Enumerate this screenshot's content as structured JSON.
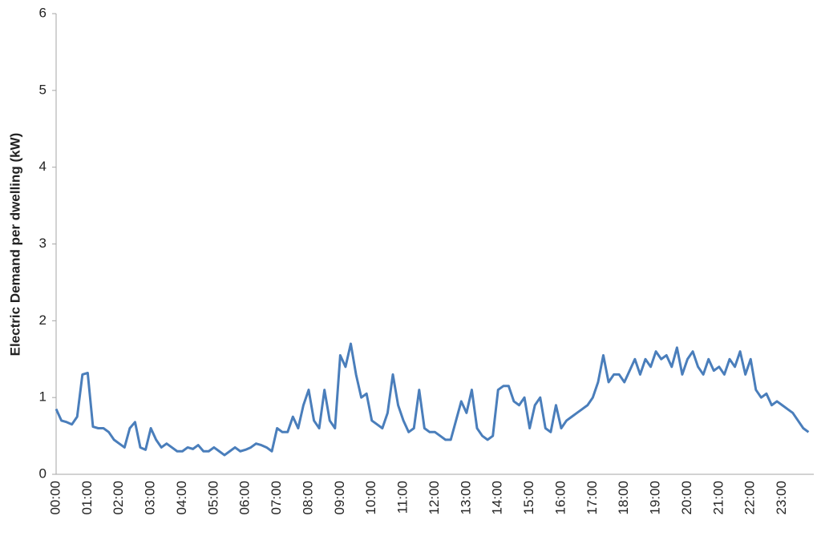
{
  "chart_data": {
    "type": "line",
    "y_label": "Electric Demand per dwelling (kW)",
    "categories": [
      "00:00",
      null,
      null,
      null,
      null,
      null,
      "01:00",
      null,
      null,
      null,
      null,
      null,
      "02:00",
      null,
      null,
      null,
      null,
      null,
      "03:00",
      null,
      null,
      null,
      null,
      null,
      "04:00",
      null,
      null,
      null,
      null,
      null,
      "05:00",
      null,
      null,
      null,
      null,
      null,
      "06:00",
      null,
      null,
      null,
      null,
      null,
      "07:00",
      null,
      null,
      null,
      null,
      null,
      "08:00",
      null,
      null,
      null,
      null,
      null,
      "09:00",
      null,
      null,
      null,
      null,
      null,
      "10:00",
      null,
      null,
      null,
      null,
      null,
      "11:00",
      null,
      null,
      null,
      null,
      null,
      "12:00",
      null,
      null,
      null,
      null,
      null,
      "13:00",
      null,
      null,
      null,
      null,
      null,
      "14:00",
      null,
      null,
      null,
      null,
      null,
      "15:00",
      null,
      null,
      null,
      null,
      null,
      "16:00",
      null,
      null,
      null,
      null,
      null,
      "17:00",
      null,
      null,
      null,
      null,
      null,
      "18:00",
      null,
      null,
      null,
      null,
      null,
      "19:00",
      null,
      null,
      null,
      null,
      null,
      "20:00",
      null,
      null,
      null,
      null,
      null,
      "21:00",
      null,
      null,
      null,
      null,
      null,
      "22:00",
      null,
      null,
      null,
      null,
      null,
      "23:00",
      null,
      null,
      null,
      null,
      null
    ],
    "series": [
      {
        "name": "Electric Demand",
        "color": "#4a7ebb",
        "values": [
          0.85,
          0.7,
          0.68,
          0.65,
          0.75,
          1.3,
          1.32,
          0.62,
          0.6,
          0.6,
          0.55,
          0.45,
          0.4,
          0.35,
          0.6,
          0.68,
          0.35,
          0.32,
          0.6,
          0.45,
          0.35,
          0.4,
          0.35,
          0.3,
          0.3,
          0.35,
          0.33,
          0.38,
          0.3,
          0.3,
          0.35,
          0.3,
          0.25,
          0.3,
          0.35,
          0.3,
          0.32,
          0.35,
          0.4,
          0.38,
          0.35,
          0.3,
          0.6,
          0.55,
          0.55,
          0.75,
          0.6,
          0.9,
          1.1,
          0.7,
          0.6,
          1.1,
          0.7,
          0.6,
          1.55,
          1.4,
          1.7,
          1.3,
          1.0,
          1.05,
          0.7,
          0.65,
          0.6,
          0.8,
          1.3,
          0.9,
          0.7,
          0.55,
          0.6,
          1.1,
          0.6,
          0.55,
          0.55,
          0.5,
          0.45,
          0.45,
          0.7,
          0.95,
          0.8,
          1.1,
          0.6,
          0.5,
          0.45,
          0.5,
          1.1,
          1.15,
          1.15,
          0.95,
          0.9,
          1.0,
          0.6,
          0.9,
          1.0,
          0.6,
          0.55,
          0.9,
          0.6,
          0.7,
          0.75,
          0.8,
          0.85,
          0.9,
          1.0,
          1.2,
          1.55,
          1.2,
          1.3,
          1.3,
          1.2,
          1.35,
          1.5,
          1.3,
          1.5,
          1.4,
          1.6,
          1.5,
          1.55,
          1.4,
          1.65,
          1.3,
          1.5,
          1.6,
          1.4,
          1.3,
          1.5,
          1.35,
          1.4,
          1.3,
          1.5,
          1.4,
          1.6,
          1.3,
          1.5,
          1.1,
          1.0,
          1.05,
          0.9,
          0.95,
          0.9,
          0.85,
          0.8,
          0.7,
          0.6,
          0.55
        ]
      }
    ],
    "ylim": [
      0,
      6
    ],
    "yticks": [
      0,
      1,
      2,
      3,
      4,
      5,
      6
    ],
    "grid": false
  }
}
